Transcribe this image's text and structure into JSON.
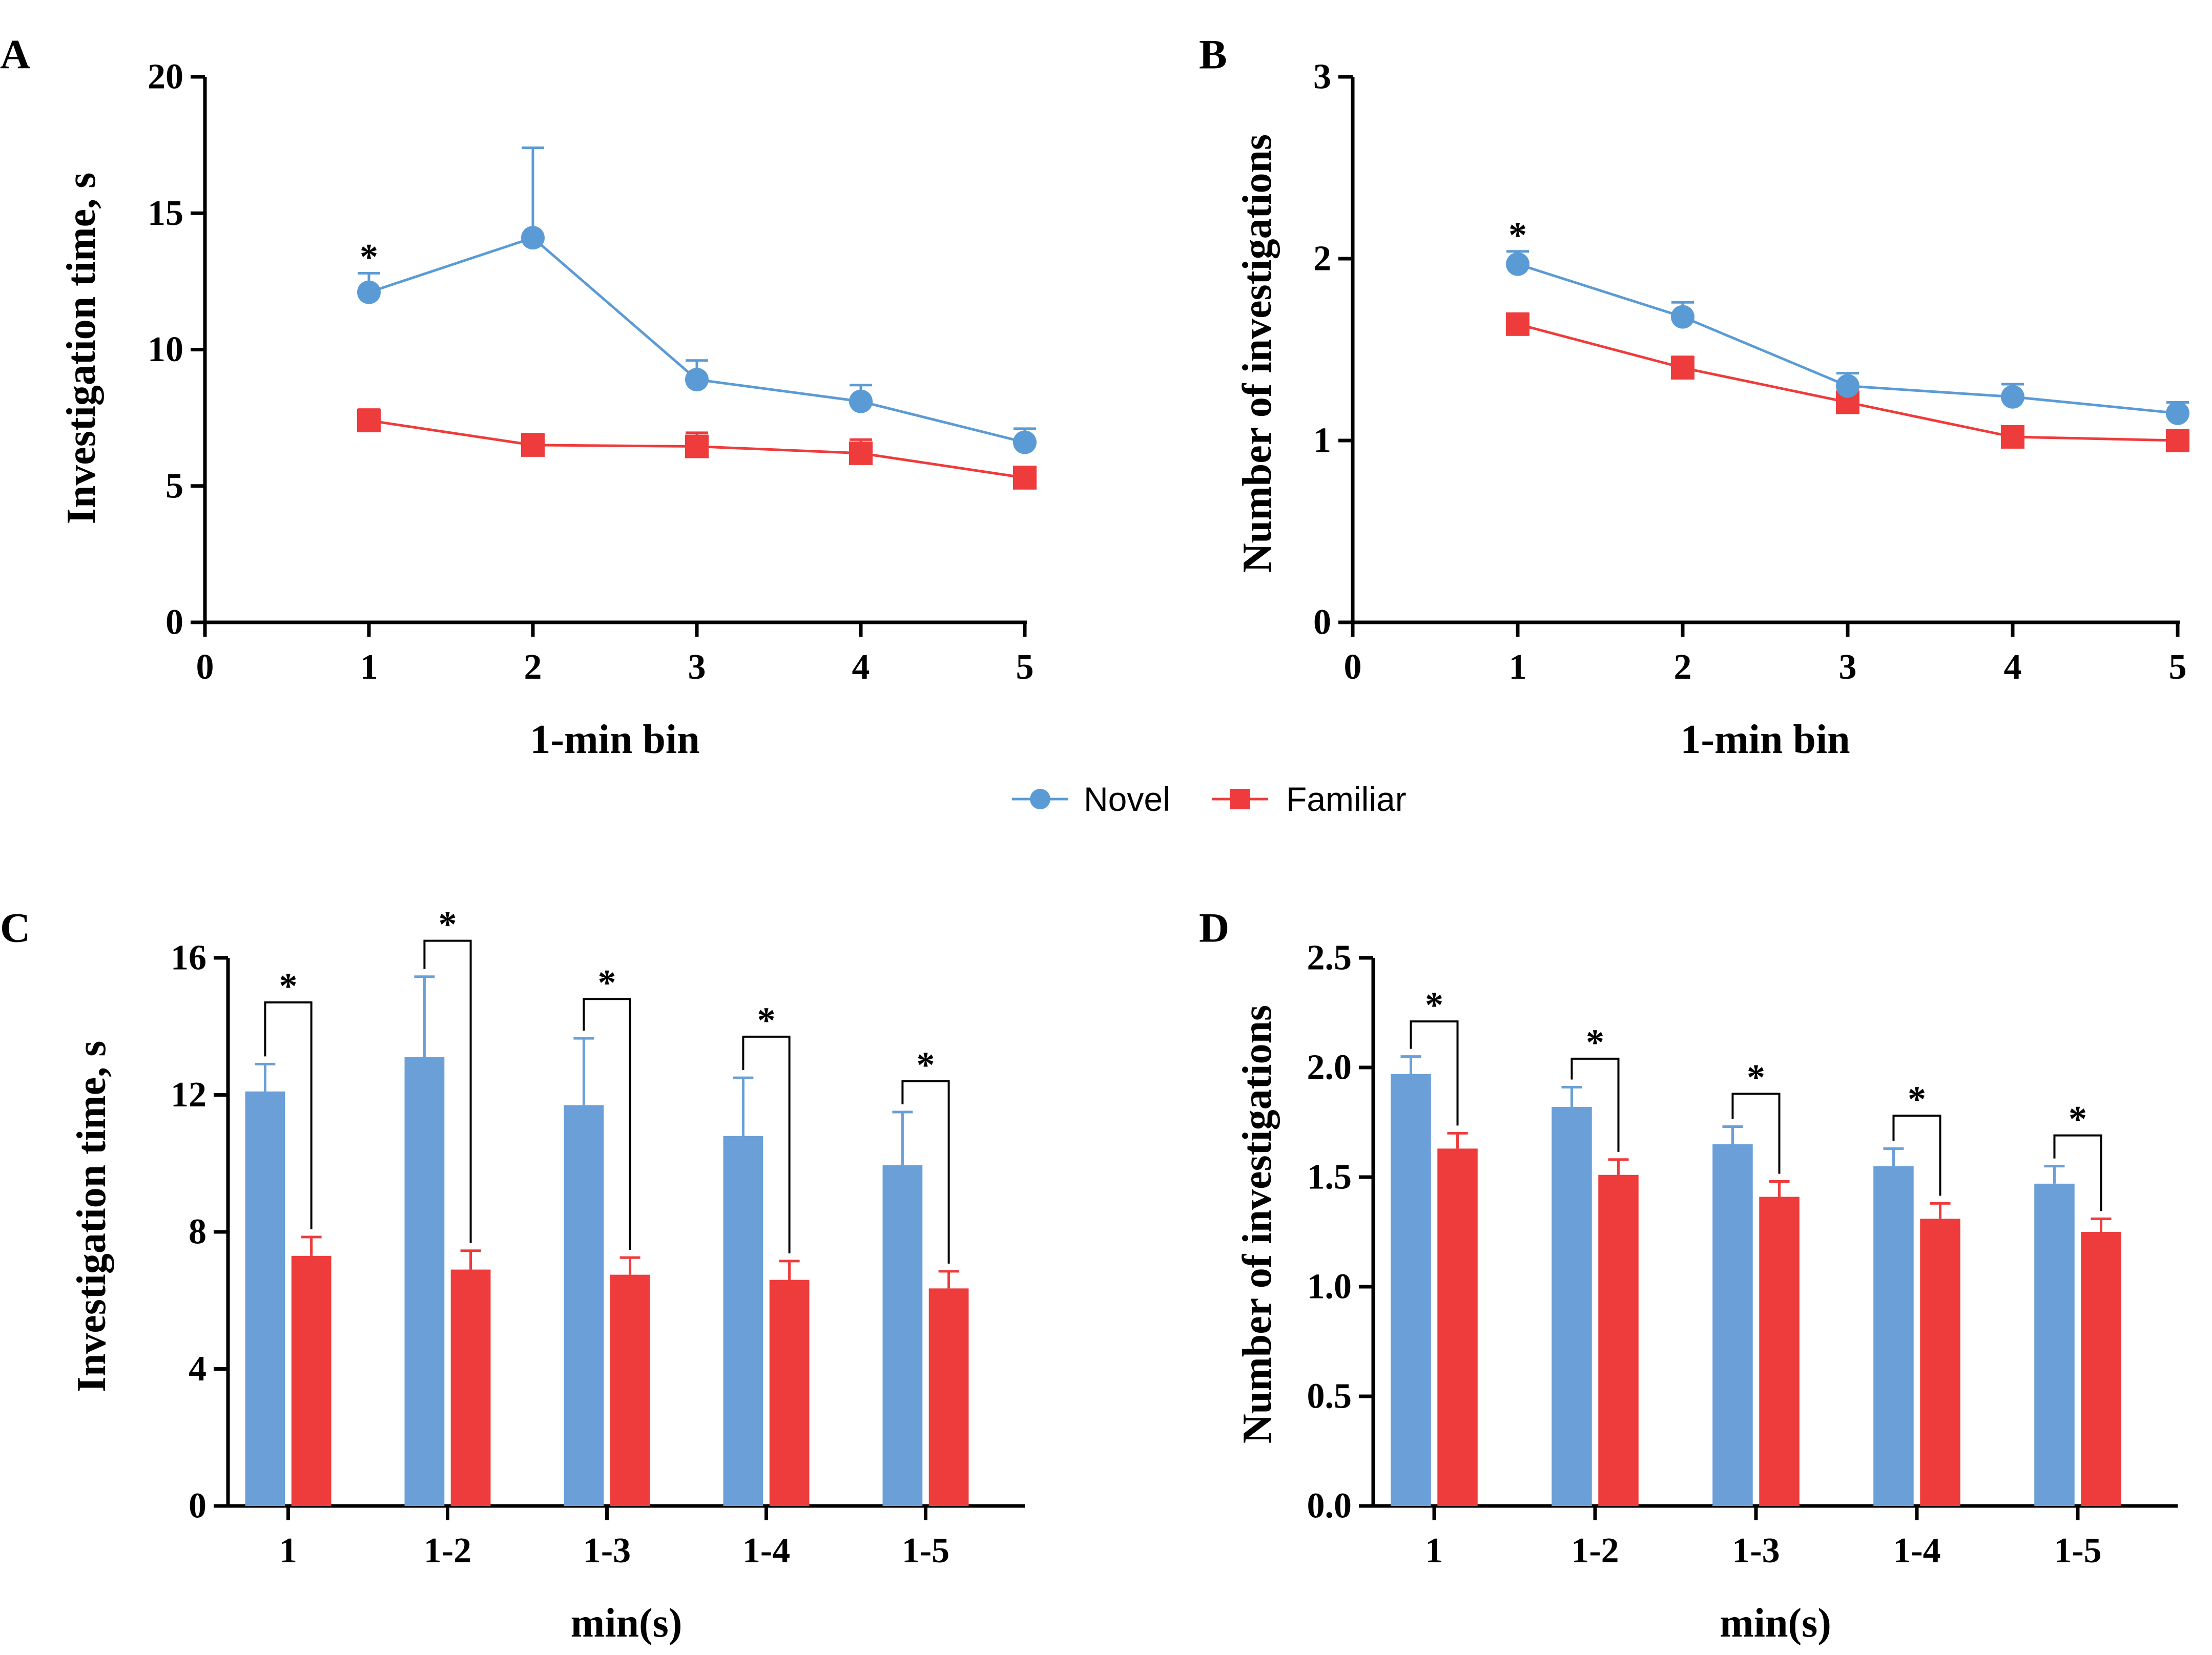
{
  "colors": {
    "novel": "#5b9bd5",
    "familiar": "#ee3b3b",
    "novel_bar": "#6a9fd8",
    "familiar_bar": "#ee3b3b",
    "axis": "#000000"
  },
  "legend": [
    {
      "key": "novel",
      "label": "Novel",
      "marker": "circle"
    },
    {
      "key": "familiar",
      "label": "Familiar",
      "marker": "square"
    }
  ],
  "chart_data": [
    {
      "panel": "A",
      "type": "line",
      "xlabel": "1-min bin",
      "ylabel": "Investigation time, s",
      "xlim": [
        0,
        5
      ],
      "ylim": [
        0,
        20
      ],
      "xticks": [
        0,
        1,
        2,
        3,
        4,
        5
      ],
      "yticks": [
        0,
        5,
        10,
        15,
        20
      ],
      "x": [
        1,
        2,
        3,
        4,
        5
      ],
      "series": [
        {
          "key": "novel",
          "name": "Novel",
          "values": [
            12.1,
            14.1,
            8.9,
            8.1,
            6.6
          ],
          "errors": [
            0.7,
            3.3,
            0.7,
            0.6,
            0.5
          ]
        },
        {
          "key": "familiar",
          "name": "Familiar",
          "values": [
            7.4,
            6.5,
            6.45,
            6.2,
            5.3
          ],
          "errors": [
            0.4,
            0.4,
            0.5,
            0.5,
            0.4
          ]
        }
      ],
      "significance": [
        {
          "x": 1,
          "label": "*"
        }
      ]
    },
    {
      "panel": "B",
      "type": "line",
      "xlabel": "1-min bin",
      "ylabel": "Number of investigations",
      "xlim": [
        0,
        5
      ],
      "ylim": [
        0,
        3
      ],
      "xticks": [
        0,
        1,
        2,
        3,
        4,
        5
      ],
      "yticks": [
        0,
        1,
        2,
        3
      ],
      "x": [
        1,
        2,
        3,
        4,
        5
      ],
      "series": [
        {
          "key": "novel",
          "name": "Novel",
          "values": [
            1.97,
            1.68,
            1.3,
            1.24,
            1.15
          ],
          "errors": [
            0.07,
            0.08,
            0.07,
            0.07,
            0.06
          ]
        },
        {
          "key": "familiar",
          "name": "Familiar",
          "values": [
            1.64,
            1.4,
            1.21,
            1.02,
            1.0
          ],
          "errors": [
            0.05,
            0.06,
            0.04,
            0.04,
            0.03
          ]
        }
      ],
      "significance": [
        {
          "x": 1,
          "label": "*"
        }
      ]
    },
    {
      "panel": "C",
      "type": "bar",
      "xlabel": "min(s)",
      "ylabel": "Investigation time, s",
      "ylim": [
        0,
        16
      ],
      "yticks": [
        0,
        4,
        8,
        12,
        16
      ],
      "categories": [
        "1",
        "1-2",
        "1-3",
        "1-4",
        "1-5"
      ],
      "series": [
        {
          "key": "novel",
          "name": "Novel",
          "values": [
            12.1,
            13.1,
            11.7,
            10.8,
            9.95
          ],
          "errors": [
            0.8,
            2.35,
            1.95,
            1.7,
            1.55
          ]
        },
        {
          "key": "familiar",
          "name": "Familiar",
          "values": [
            7.3,
            6.9,
            6.75,
            6.6,
            6.35
          ],
          "errors": [
            0.55,
            0.55,
            0.5,
            0.55,
            0.5
          ]
        }
      ],
      "brackets": [
        {
          "category": "1",
          "level": 14.7,
          "label": "*"
        },
        {
          "category": "1-2",
          "level": 16.5,
          "label": "*"
        },
        {
          "category": "1-3",
          "level": 14.8,
          "label": "*"
        },
        {
          "category": "1-4",
          "level": 13.7,
          "label": "*"
        },
        {
          "category": "1-5",
          "level": 12.4,
          "label": "*"
        }
      ]
    },
    {
      "panel": "D",
      "type": "bar",
      "xlabel": "min(s)",
      "ylabel": "Number of investigations",
      "ylim": [
        0,
        2.5
      ],
      "yticks": [
        0.0,
        0.5,
        1.0,
        1.5,
        2.0,
        2.5
      ],
      "ytick_labels": [
        "0.0",
        "0.5",
        "1.0",
        "1.5",
        "2.0",
        "2.5"
      ],
      "categories": [
        "1",
        "1-2",
        "1-3",
        "1-4",
        "1-5"
      ],
      "series": [
        {
          "key": "novel",
          "name": "Novel",
          "values": [
            1.97,
            1.82,
            1.65,
            1.55,
            1.47
          ],
          "errors": [
            0.08,
            0.09,
            0.08,
            0.08,
            0.08
          ]
        },
        {
          "key": "familiar",
          "name": "Familiar",
          "values": [
            1.63,
            1.51,
            1.41,
            1.31,
            1.25
          ],
          "errors": [
            0.07,
            0.07,
            0.07,
            0.07,
            0.06
          ]
        }
      ],
      "brackets": [
        {
          "category": "1",
          "level": 2.21,
          "label": "*"
        },
        {
          "category": "1-2",
          "level": 2.04,
          "label": "*"
        },
        {
          "category": "1-3",
          "level": 1.88,
          "label": "*"
        },
        {
          "category": "1-4",
          "level": 1.78,
          "label": "*"
        },
        {
          "category": "1-5",
          "level": 1.69,
          "label": "*"
        }
      ]
    }
  ]
}
